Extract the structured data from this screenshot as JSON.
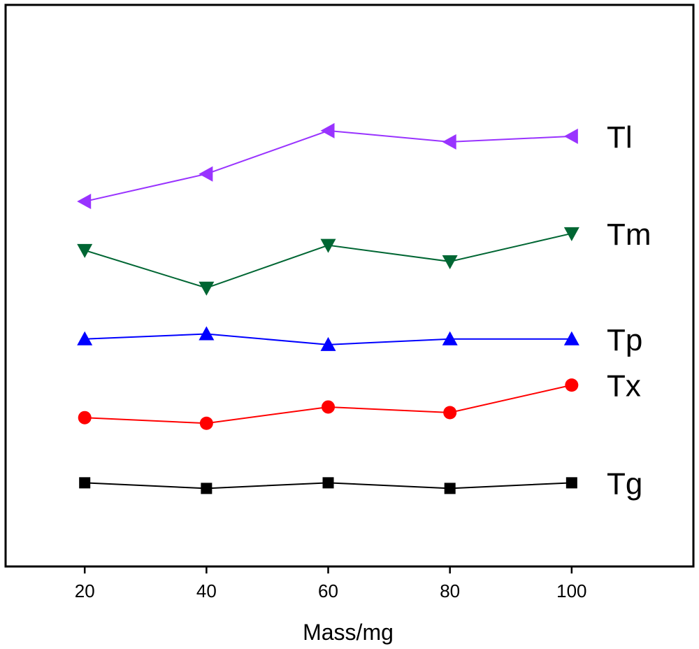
{
  "chart_data": {
    "type": "line",
    "title": "",
    "xlabel": "Mass/mg",
    "ylabel": "",
    "x": [
      20,
      40,
      60,
      80,
      100
    ],
    "xlim": [
      7,
      120
    ],
    "ylim": [
      0,
      100
    ],
    "grid": false,
    "legend": "inline-right",
    "series": [
      {
        "name": "Tg",
        "color": "#000000",
        "marker": "square",
        "values": [
          14.9,
          13.9,
          14.9,
          13.9,
          14.9
        ]
      },
      {
        "name": "Tx",
        "color": "#ff0000",
        "marker": "circle",
        "values": [
          26.5,
          25.5,
          28.4,
          27.4,
          32.3
        ]
      },
      {
        "name": "Tp",
        "color": "#0000ff",
        "marker": "triangle-up",
        "values": [
          40.5,
          41.4,
          39.5,
          40.5,
          40.5
        ]
      },
      {
        "name": "Tm",
        "color": "#006633",
        "marker": "triangle-down",
        "values": [
          56.3,
          49.6,
          57.2,
          54.3,
          59.3
        ]
      },
      {
        "name": "Tl",
        "color": "#9933ff",
        "marker": "triangle-left",
        "values": [
          65.0,
          69.9,
          77.6,
          75.6,
          76.6
        ]
      }
    ]
  }
}
